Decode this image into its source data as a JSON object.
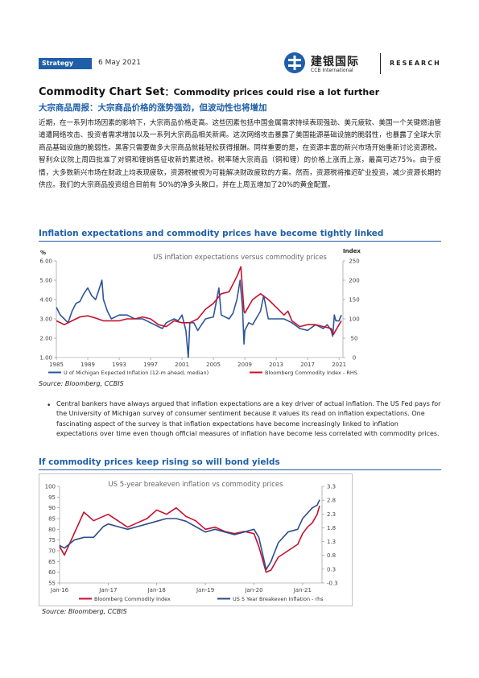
{
  "header": {
    "tag": "Strategy",
    "date": "6 May 2021",
    "brand_cn": "建银国际",
    "brand_en": "CCB International",
    "research": "RESEARCH"
  },
  "title": {
    "main": "Commodity Chart Set",
    "sep": "：",
    "sub": "Commodity prices could rise a lot further"
  },
  "subtitle_cn": "大宗商品周报：大宗商品价格的涨势强劲，但波动性也将增加",
  "paragraph_cn": "近期，在一系列市场因素的影响下，大宗商品价格走高。这些因素包括中国金属需求持续表现强劲、美元疲软、美国一个关键燃油管道遭网络攻击、投资者需求增加以及一系列大宗商品相关新闻。这次网络攻击暴露了美国能源基础设施的脆弱性，也暴露了全球大宗商品基础设施的脆弱性。黑客只需要做多大宗商品就能轻松获得报酬。同样重要的是，在资源丰富的新兴市场开始重新讨论资源税。智利众议院上周四批准了对铜和锂销售征收新的累进税。税率随大宗商品（铜和锂）的价格上涨而上涨，最高可达75%。由于疫情，大多数新兴市场在财政上均表现疲软，资源税被视为可能解决财政疲软的方案。然而，资源税将推迟矿业投资，减少资源长期的供应。我们的大宗商品投资组合目前有 50%的净多头敞口，并在上周五增加了20%的黄金配置。",
  "section1": {
    "heading": "Inflation expectations and commodity prices have become tightly linked",
    "source": "Source: Bloomberg, CCBIS"
  },
  "bullet": {
    "text": "Central bankers have always argued that inflation expectations are a key driver of actual inflation. The US Fed pays for the University of Michigan survey of consumer sentiment because it values its read on inflation expectations. One fascinating aspect of the survey is that inflation expectations have become increasingly linked to inflation expectations over time even though official measures of inflation have become less correlated with commodity prices."
  },
  "section2": {
    "heading": "If commodity prices keep rising so will bond yields",
    "source": "Source: Bloomberg, CCBIS"
  },
  "chart_data": [
    {
      "type": "line",
      "title": "US inflation expectations versus commodity prices",
      "ylabel_left": "%",
      "ylabel_right": "Index",
      "ylim_left": [
        1.0,
        6.0
      ],
      "ylim_right": [
        0,
        250
      ],
      "yticks_left": [
        "1.00",
        "2.00",
        "3.00",
        "4.00",
        "5.00",
        "6.00"
      ],
      "yticks_right": [
        "0",
        "50",
        "100",
        "150",
        "200",
        "250"
      ],
      "xlim": [
        1985,
        2021.5
      ],
      "xticks": [
        "1985",
        "1989",
        "1993",
        "1997",
        "2001",
        "2005",
        "2009",
        "2013",
        "2017",
        "2021"
      ],
      "legend_position": "bottom",
      "grid": false,
      "colors": {
        "blue": "#2e5597",
        "red": "#c8102e"
      },
      "series": [
        {
          "name": "U of Michigan Expected Inflation (12-m ahead, median)",
          "axis": "left",
          "color": "#2e5597",
          "x": [
            1985,
            1985.5,
            1986,
            1986.5,
            1987,
            1987.5,
            1988,
            1988.5,
            1989,
            1989.5,
            1990,
            1990.5,
            1990.8,
            1991,
            1991.5,
            1992,
            1993,
            1994,
            1995,
            1996,
            1997,
            1998,
            1998.5,
            1999,
            2000,
            2000.5,
            2001,
            2001.5,
            2001.8,
            2002,
            2002.5,
            2003,
            2003.5,
            2004,
            2005,
            2005.7,
            2006,
            2007,
            2007.5,
            2008,
            2008.4,
            2008.7,
            2008.9,
            2009,
            2009.5,
            2010,
            2011,
            2011.4,
            2012,
            2013,
            2014,
            2015,
            2016,
            2017,
            2018,
            2019,
            2019.5,
            2020,
            2020.2,
            2020.4,
            2020.6,
            2021,
            2021.3
          ],
          "y": [
            3.6,
            3.2,
            3.0,
            2.8,
            3.4,
            3.8,
            3.9,
            4.3,
            4.6,
            4.2,
            4.0,
            4.6,
            5.0,
            4.0,
            3.4,
            3.0,
            3.2,
            3.2,
            3.0,
            3.0,
            2.8,
            2.6,
            2.5,
            2.8,
            3.0,
            2.9,
            3.2,
            2.4,
            1.0,
            2.8,
            2.8,
            2.4,
            2.7,
            3.0,
            3.1,
            4.6,
            3.2,
            3.0,
            3.3,
            4.0,
            5.0,
            3.6,
            1.7,
            2.4,
            2.8,
            2.7,
            3.4,
            4.2,
            3.0,
            3.0,
            3.0,
            2.8,
            2.5,
            2.4,
            2.7,
            2.5,
            2.7,
            2.4,
            2.1,
            3.2,
            2.9,
            2.9,
            3.2
          ]
        },
        {
          "name": "Bloomberg Commodity Index - RHS",
          "axis": "right",
          "color": "#c8102e",
          "x": [
            1985,
            1986,
            1987,
            1988,
            1989,
            1990,
            1991,
            1992,
            1993,
            1994,
            1995,
            1996,
            1997,
            1998,
            1999,
            2000,
            2001,
            2002,
            2003,
            2004,
            2005,
            2006,
            2007,
            2008,
            2008.5,
            2008.9,
            2009,
            2010,
            2011,
            2012,
            2013,
            2014,
            2014.5,
            2015,
            2016,
            2017,
            2018,
            2019,
            2020,
            2020.3,
            2021,
            2021.3
          ],
          "y": [
            95,
            85,
            95,
            105,
            108,
            102,
            95,
            95,
            95,
            100,
            100,
            105,
            100,
            85,
            80,
            95,
            90,
            90,
            100,
            125,
            140,
            165,
            170,
            210,
            235,
            120,
            115,
            150,
            165,
            150,
            130,
            110,
            120,
            95,
            80,
            85,
            85,
            80,
            75,
            60,
            85,
            95
          ]
        }
      ]
    },
    {
      "type": "line",
      "title": "US 5-year breakeven inflation vs commodity prices",
      "ylim_left": [
        55,
        100
      ],
      "ylim_right": [
        -0.3,
        3.3
      ],
      "yticks_left": [
        "55",
        "60",
        "65",
        "70",
        "75",
        "80",
        "85",
        "90",
        "95",
        "100"
      ],
      "yticks_right": [
        "-0.3",
        "0.3",
        "0.8",
        "1.3",
        "1.8",
        "2.3",
        "2.8",
        "3.3"
      ],
      "xticks": [
        "Jan-16",
        "Jan-17",
        "Jan-18",
        "Jan-19",
        "Jan-20",
        "Jan-21"
      ],
      "xlim": [
        2016,
        2021.4
      ],
      "legend_position": "bottom",
      "grid": false,
      "series": [
        {
          "name": "Bloomberg Commodity Index",
          "axis": "left",
          "color": "#c8102e",
          "x": [
            2016.0,
            2016.1,
            2016.3,
            2016.5,
            2016.7,
            2016.9,
            2017.0,
            2017.2,
            2017.4,
            2017.6,
            2017.8,
            2018.0,
            2018.2,
            2018.4,
            2018.6,
            2018.8,
            2019.0,
            2019.2,
            2019.4,
            2019.6,
            2019.8,
            2020.0,
            2020.1,
            2020.25,
            2020.35,
            2020.5,
            2020.7,
            2020.9,
            2021.0,
            2021.1,
            2021.2,
            2021.3,
            2021.35
          ],
          "y": [
            72,
            68,
            78,
            88,
            84,
            86,
            87,
            84,
            81,
            83,
            85,
            89,
            87,
            90,
            86,
            84,
            80,
            81,
            79,
            78,
            79,
            78,
            72,
            60,
            61,
            67,
            70,
            73,
            78,
            81,
            83,
            87,
            91
          ]
        },
        {
          "name": "US 5 Year Breakeven Inflation - rhs",
          "axis": "right",
          "color": "#2e4d8a",
          "x": [
            2016.0,
            2016.1,
            2016.3,
            2016.5,
            2016.7,
            2016.9,
            2017.0,
            2017.2,
            2017.4,
            2017.6,
            2017.8,
            2018.0,
            2018.2,
            2018.4,
            2018.6,
            2018.8,
            2019.0,
            2019.2,
            2019.4,
            2019.6,
            2019.8,
            2020.0,
            2020.1,
            2020.25,
            2020.35,
            2020.5,
            2020.7,
            2020.9,
            2021.0,
            2021.1,
            2021.2,
            2021.3,
            2021.35
          ],
          "y": [
            1.1,
            1.0,
            1.3,
            1.4,
            1.4,
            1.8,
            1.9,
            1.8,
            1.7,
            1.8,
            1.9,
            2.0,
            2.1,
            2.1,
            2.0,
            1.8,
            1.6,
            1.7,
            1.6,
            1.5,
            1.6,
            1.7,
            1.4,
            0.2,
            0.5,
            1.2,
            1.6,
            1.7,
            2.1,
            2.3,
            2.5,
            2.6,
            2.8
          ]
        }
      ]
    }
  ]
}
